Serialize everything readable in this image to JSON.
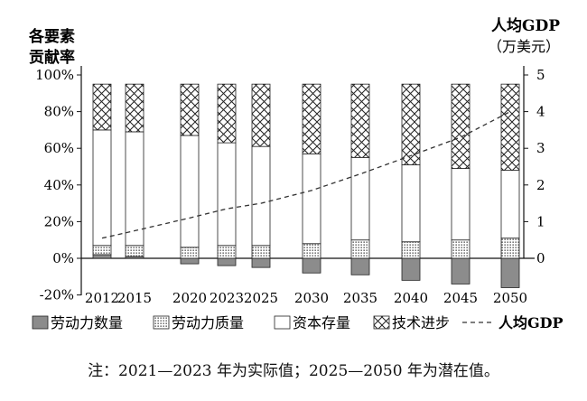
{
  "chart_data": {
    "type": "bar",
    "stacked": true,
    "left_axis_title": [
      "各要素",
      "贡献率"
    ],
    "right_axis_title": [
      "人均GDP",
      "（万美元）"
    ],
    "categories": [
      "2012",
      "2015",
      "2020",
      "2023",
      "2025",
      "2030",
      "2035",
      "2040",
      "2045",
      "2050"
    ],
    "left_ticks": [
      "100%",
      "80%",
      "60%",
      "40%",
      "20%",
      "0%",
      "-20%"
    ],
    "right_ticks": [
      "5",
      "4",
      "3",
      "2",
      "1",
      "0"
    ],
    "left_range": [
      -20,
      100
    ],
    "right_range": [
      -1,
      5
    ],
    "series": [
      {
        "name": "劳动力数量",
        "pattern": "gray",
        "values": [
          2,
          1,
          -3,
          -4,
          -5,
          -8,
          -9,
          -12,
          -14,
          -16
        ]
      },
      {
        "name": "劳动力质量",
        "pattern": "dots",
        "values": [
          5,
          6,
          6,
          7,
          7,
          8,
          10,
          9,
          10,
          11
        ]
      },
      {
        "name": "资本存量",
        "pattern": "white",
        "values": [
          63,
          62,
          61,
          56,
          54,
          49,
          45,
          42,
          39,
          37
        ]
      },
      {
        "name": "技术进步",
        "pattern": "cross",
        "values": [
          25,
          26,
          28,
          32,
          34,
          38,
          40,
          44,
          46,
          47
        ]
      }
    ],
    "line": {
      "name": "人均GDP",
      "axis": "right",
      "style": "dashed",
      "values": [
        0.55,
        0.75,
        1.1,
        1.35,
        1.5,
        1.85,
        2.3,
        2.8,
        3.3,
        4.0
      ]
    }
  },
  "note": "注：2021—2023 年为实际值；2025—2050 年为潜在值。"
}
